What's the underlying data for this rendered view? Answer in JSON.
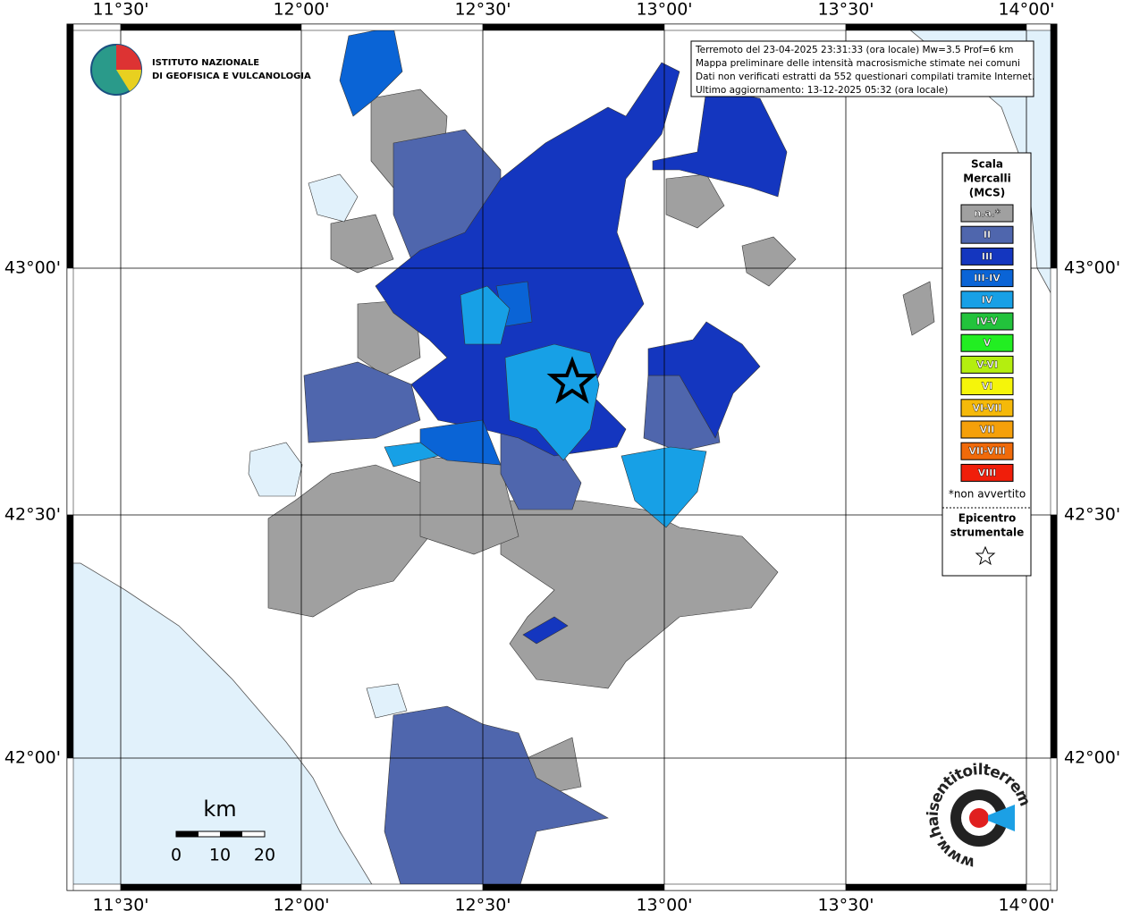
{
  "header": {
    "institute": [
      "ISTITUTO NAZIONALE",
      "DI GEOFISICA E VULCANOLOGIA"
    ]
  },
  "info": [
    "Terremoto del 23-04-2025 23:31:33 (ora locale) Mw=3.5 Prof=6 km",
    "Mappa preliminare delle intensità macrosismiche stimate nei comuni",
    "Dati non verificati estratti da 552 questionari compilati tramite Internet.",
    "Ultimo aggiornamento: 13-12-2025 05:32 (ora locale)"
  ],
  "graticule": {
    "longitudes": [
      "11°30'",
      "12°00'",
      "12°30'",
      "13°00'",
      "13°30'",
      "14°00'"
    ],
    "latitudes": [
      "43°00'",
      "42°30'",
      "42°00'"
    ]
  },
  "legend": {
    "title": [
      "Scala",
      "Mercalli",
      "(MCS)"
    ],
    "items": [
      {
        "label": "n.a.*",
        "color": "#a0a0a0"
      },
      {
        "label": "II",
        "color": "#4f66ad"
      },
      {
        "label": "III",
        "color": "#1436bf"
      },
      {
        "label": "III-IV",
        "color": "#0a64d6"
      },
      {
        "label": "IV",
        "color": "#17a0e6"
      },
      {
        "label": "IV-V",
        "color": "#22c33c"
      },
      {
        "label": "V",
        "color": "#22ee22"
      },
      {
        "label": "V-VI",
        "color": "#b4ee0f"
      },
      {
        "label": "VI",
        "color": "#f5f50a"
      },
      {
        "label": "VI-VII",
        "color": "#f5b90a"
      },
      {
        "label": "VII",
        "color": "#f5a00a"
      },
      {
        "label": "VII-VIII",
        "color": "#f06a0a"
      },
      {
        "label": "VIII",
        "color": "#f01e0a"
      }
    ],
    "note": "*non avvertito",
    "epicenter_title": [
      "Epicentro",
      "strumentale"
    ]
  },
  "scale_bar": {
    "unit": "km",
    "labels": [
      "0",
      "10",
      "20"
    ]
  },
  "footer_logo": "www.haisentitoilterremoto.it"
}
